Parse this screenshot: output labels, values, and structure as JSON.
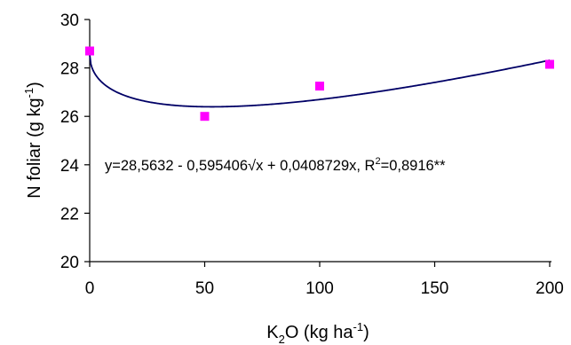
{
  "chart_data": {
    "type": "scatter",
    "xlabel": {
      "base": "K",
      "sub": "2",
      "mid": "O (kg ha",
      "sup": "-1",
      "end": ")"
    },
    "ylabel": {
      "base": "N foliar (g kg",
      "sup": "-1",
      "end": ")"
    },
    "xlim": [
      0,
      200
    ],
    "ylim": [
      20,
      30
    ],
    "xticks": [
      "0",
      "50",
      "100",
      "150",
      "200"
    ],
    "yticks": [
      "20",
      "22",
      "24",
      "26",
      "28",
      "30"
    ],
    "grid": false,
    "points": [
      {
        "x": 0,
        "y": 28.7
      },
      {
        "x": 50,
        "y": 26.0
      },
      {
        "x": 100,
        "y": 27.25
      },
      {
        "x": 200,
        "y": 28.15
      }
    ],
    "fit": {
      "intercept": 28.5632,
      "sqrt_coef": -0.595406,
      "lin_coef": 0.0408729
    },
    "equation": {
      "main": "y=28,5632 - 0,595406√x + 0,0408729x, R",
      "sup": "2",
      "end": "=0,8916**"
    },
    "colors": {
      "marker": "#ff00ff",
      "curve": "#000066",
      "axis": "#000000"
    }
  }
}
